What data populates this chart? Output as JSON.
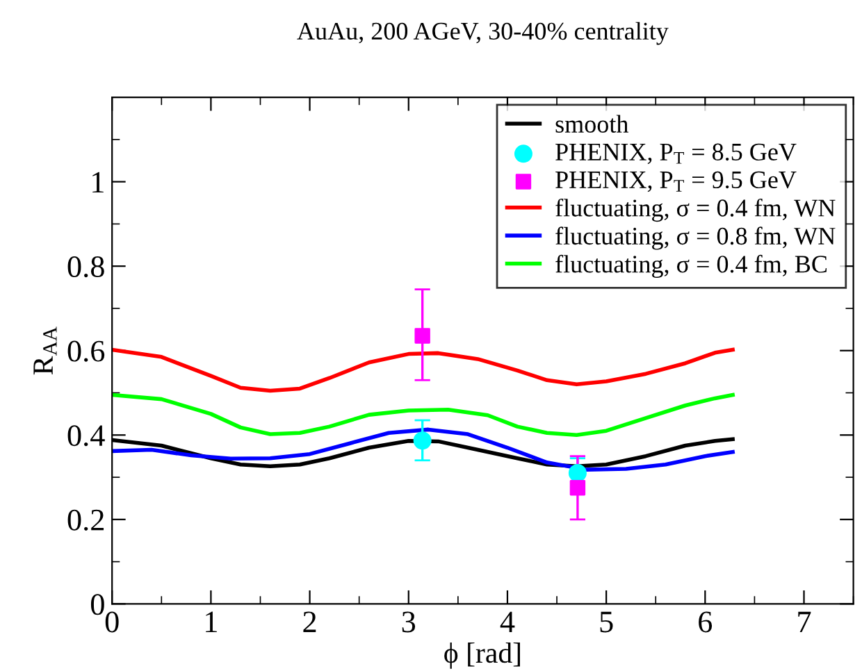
{
  "chart_data": {
    "type": "line",
    "title": "AuAu, 200 AGeV, 30-40% centrality",
    "xlabel": "ϕ [rad]",
    "ylabel": "R$_{AA}$",
    "xlim": [
      0,
      7.5
    ],
    "xticks": [
      0,
      1,
      2,
      3,
      4,
      5,
      6,
      7
    ],
    "ylim": [
      0,
      1.2
    ],
    "yticks": [
      0,
      0.2,
      0.4,
      0.6,
      0.8,
      1
    ],
    "grid": false,
    "legend": "top right",
    "series": [
      {
        "name": "smooth",
        "color": "#000000",
        "x": [
          0,
          0.5,
          1.0,
          1.3,
          1.6,
          1.9,
          2.2,
          2.6,
          3.0,
          3.3,
          3.7,
          4.1,
          4.4,
          4.7,
          5.0,
          5.4,
          5.8,
          6.1,
          6.28
        ],
        "values": [
          0.388,
          0.375,
          0.345,
          0.33,
          0.326,
          0.33,
          0.345,
          0.37,
          0.386,
          0.385,
          0.365,
          0.345,
          0.33,
          0.326,
          0.33,
          0.35,
          0.375,
          0.386,
          0.39
        ]
      },
      {
        "name": "PHENIX, P$_{T}$ = 8.5 GeV",
        "type": "scatter",
        "marker": "circle",
        "color": "#00ffff",
        "x": [
          3.14,
          4.71
        ],
        "values": [
          0.387,
          0.31
        ],
        "errors": [
          [
            0.34,
            0.435
          ],
          [
            0.31,
            0.345
          ]
        ]
      },
      {
        "name": "PHENIX, P$_{T}$ = 9.5 GeV",
        "type": "scatter",
        "marker": "square",
        "color": "#ff00ff",
        "x": [
          3.14,
          4.71
        ],
        "values": [
          0.635,
          0.275
        ],
        "errors": [
          [
            0.53,
            0.745
          ],
          [
            0.2,
            0.35
          ]
        ]
      },
      {
        "name": "fluctuating, σ = 0.4 fm, WN",
        "color": "#ff0000",
        "x": [
          0,
          0.5,
          1.0,
          1.3,
          1.6,
          1.9,
          2.2,
          2.6,
          3.0,
          3.3,
          3.7,
          4.1,
          4.4,
          4.7,
          5.0,
          5.4,
          5.8,
          6.1,
          6.28
        ],
        "values": [
          0.602,
          0.585,
          0.54,
          0.512,
          0.505,
          0.51,
          0.535,
          0.572,
          0.592,
          0.594,
          0.58,
          0.553,
          0.53,
          0.52,
          0.527,
          0.545,
          0.57,
          0.595,
          0.602
        ]
      },
      {
        "name": "fluctuating, σ = 0.8 fm, WN",
        "color": "#0000ff",
        "x": [
          0,
          0.4,
          0.8,
          1.2,
          1.6,
          2.0,
          2.4,
          2.8,
          3.2,
          3.6,
          4.0,
          4.4,
          4.8,
          5.2,
          5.6,
          6.0,
          6.28
        ],
        "values": [
          0.362,
          0.365,
          0.352,
          0.344,
          0.345,
          0.355,
          0.38,
          0.405,
          0.413,
          0.402,
          0.37,
          0.335,
          0.318,
          0.32,
          0.33,
          0.35,
          0.36
        ]
      },
      {
        "name": "fluctuating, σ = 0.4 fm, BC",
        "color": "#00ff00",
        "x": [
          0,
          0.5,
          1.0,
          1.3,
          1.6,
          1.9,
          2.2,
          2.6,
          3.0,
          3.4,
          3.8,
          4.1,
          4.4,
          4.7,
          5.0,
          5.4,
          5.8,
          6.1,
          6.28
        ],
        "values": [
          0.495,
          0.485,
          0.45,
          0.418,
          0.402,
          0.405,
          0.42,
          0.448,
          0.458,
          0.46,
          0.447,
          0.42,
          0.405,
          0.4,
          0.41,
          0.44,
          0.47,
          0.487,
          0.495
        ]
      }
    ]
  }
}
